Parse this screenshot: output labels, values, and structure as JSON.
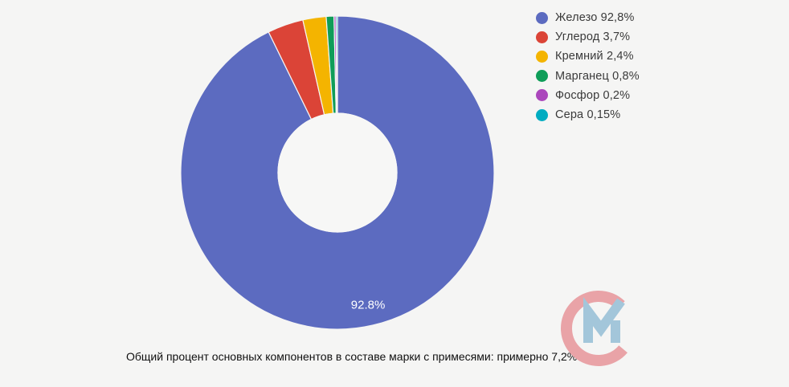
{
  "page": {
    "background": "#f5f5f4"
  },
  "chart_data": {
    "type": "pie",
    "donut": true,
    "inner_radius_ratio": 0.38,
    "start_angle_deg": 0,
    "clockwise": true,
    "grid": false,
    "legend_position": "right-top",
    "labels": [
      "Железо",
      "Углерод",
      "Кремний",
      "Марганец",
      "Фосфор",
      "Сера"
    ],
    "values": [
      92.8,
      3.7,
      2.4,
      0.8,
      0.2,
      0.15
    ],
    "display_values": [
      "92,8%",
      "3,7%",
      "2,4%",
      "0,8%",
      "0,2%",
      "0,15%"
    ],
    "colors": [
      "#5c6bc0",
      "#db4437",
      "#f4b400",
      "#0f9d58",
      "#ab47bc",
      "#00acc1"
    ],
    "legend_entries": [
      "Железо 92,8%",
      "Углерод 3,7%",
      "Кремний 2,4%",
      "Марганец 0,8%",
      "Фосфор 0,2%",
      "Сера 0,15%"
    ],
    "slice_label": {
      "index": 0,
      "text": "92.8%"
    }
  },
  "caption": {
    "text": "Общий процент основных компонентов в составе марки с примесями: примерно 7,2%"
  },
  "logo": {
    "name": "СМ watermark",
    "colors": {
      "c_ring": "#e9a3a7",
      "m_check": "#a3c6da"
    }
  }
}
